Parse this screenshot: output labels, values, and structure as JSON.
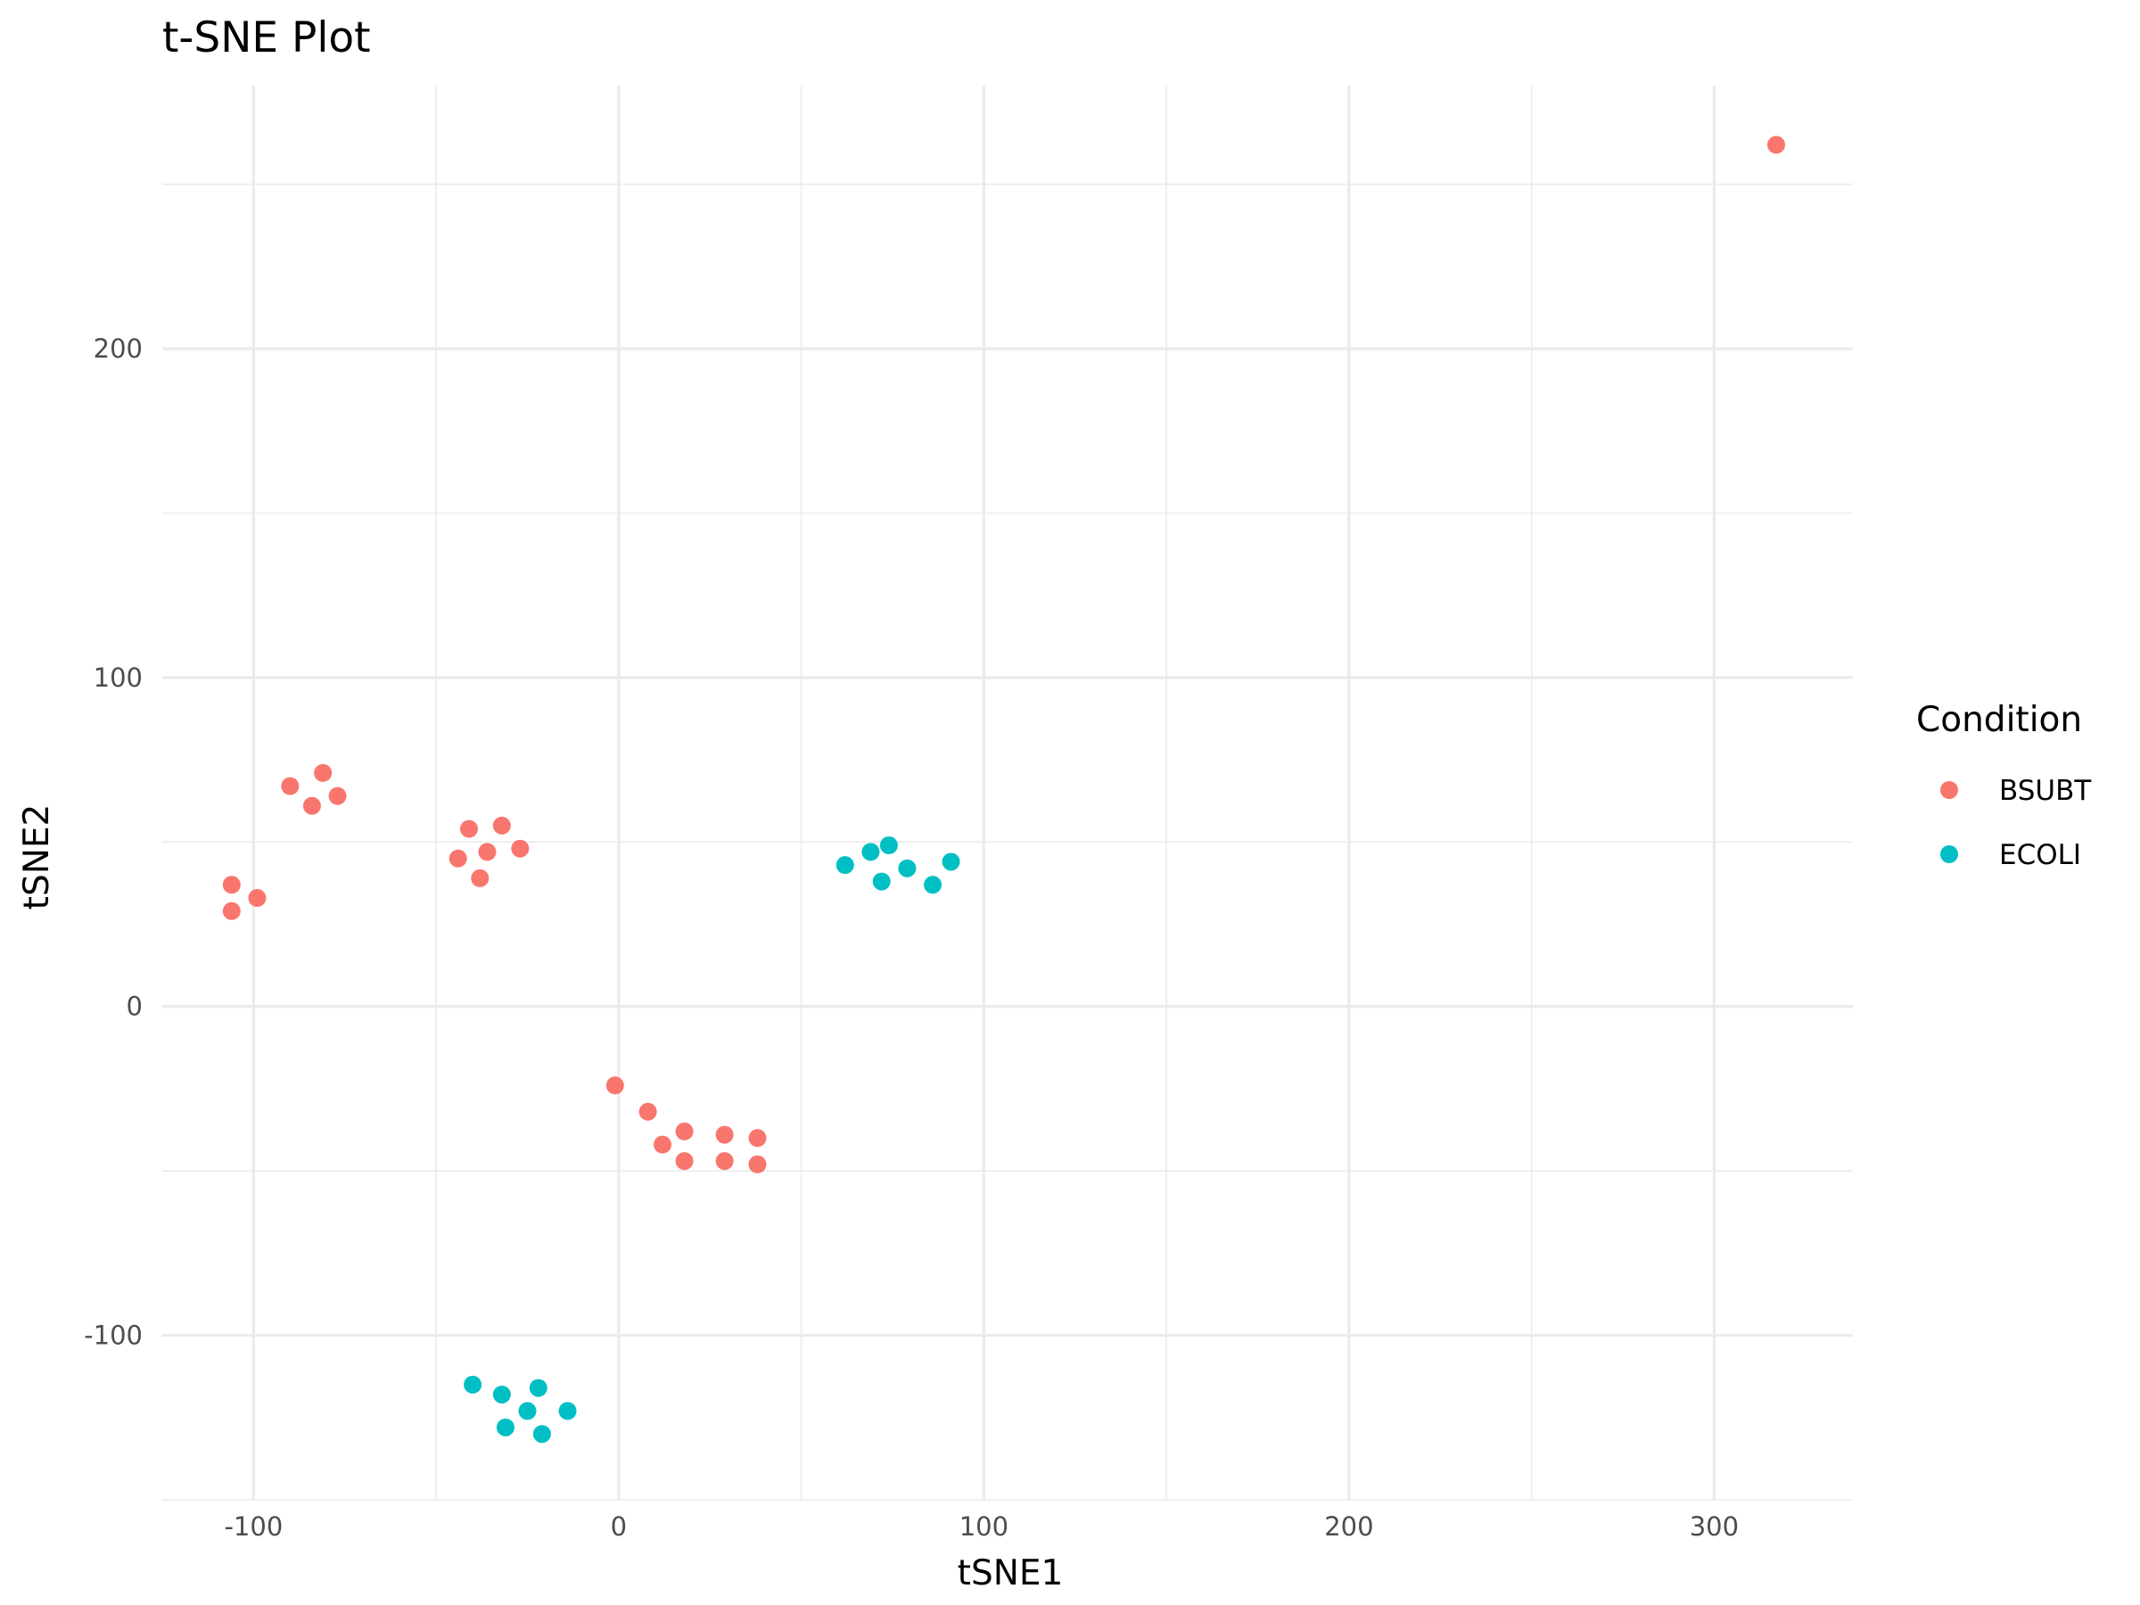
{
  "chart_data": {
    "type": "scatter",
    "title": "t-SNE Plot",
    "xlabel": "tSNE1",
    "ylabel": "tSNE2",
    "xlim": [
      -125,
      338
    ],
    "ylim": [
      -150,
      280
    ],
    "x_ticks": [
      -100,
      0,
      100,
      200,
      300
    ],
    "y_ticks": [
      -100,
      0,
      100,
      200
    ],
    "x_tick_labels": [
      "-100",
      "0",
      "100",
      "200",
      "300"
    ],
    "y_tick_labels": [
      "-100",
      "0",
      "100",
      "200"
    ],
    "grid": true,
    "legend_position": "right",
    "legend_title": "Condition",
    "series": [
      {
        "name": "BSUBT",
        "color": "#F8766D",
        "points": [
          [
            -106,
            37
          ],
          [
            -106,
            29
          ],
          [
            -99,
            33
          ],
          [
            -90,
            67
          ],
          [
            -84,
            61
          ],
          [
            -81,
            71
          ],
          [
            -77,
            64
          ],
          [
            -44,
            45
          ],
          [
            -41,
            54
          ],
          [
            -36,
            47
          ],
          [
            -38,
            39
          ],
          [
            -32,
            55
          ],
          [
            -27,
            48
          ],
          [
            -1,
            -24
          ],
          [
            8,
            -32
          ],
          [
            12,
            -42
          ],
          [
            18,
            -38
          ],
          [
            18,
            -47
          ],
          [
            29,
            -39
          ],
          [
            29,
            -47
          ],
          [
            38,
            -40
          ],
          [
            38,
            -48
          ],
          [
            317,
            262
          ]
        ]
      },
      {
        "name": "ECOLI",
        "color": "#00BFC4",
        "points": [
          [
            62,
            43
          ],
          [
            69,
            47
          ],
          [
            72,
            38
          ],
          [
            74,
            49
          ],
          [
            79,
            42
          ],
          [
            86,
            37
          ],
          [
            91,
            44
          ],
          [
            -40,
            -115
          ],
          [
            -32,
            -118
          ],
          [
            -31,
            -128
          ],
          [
            -25,
            -123
          ],
          [
            -22,
            -116
          ],
          [
            -21,
            -130
          ],
          [
            -14,
            -123
          ]
        ]
      }
    ]
  }
}
